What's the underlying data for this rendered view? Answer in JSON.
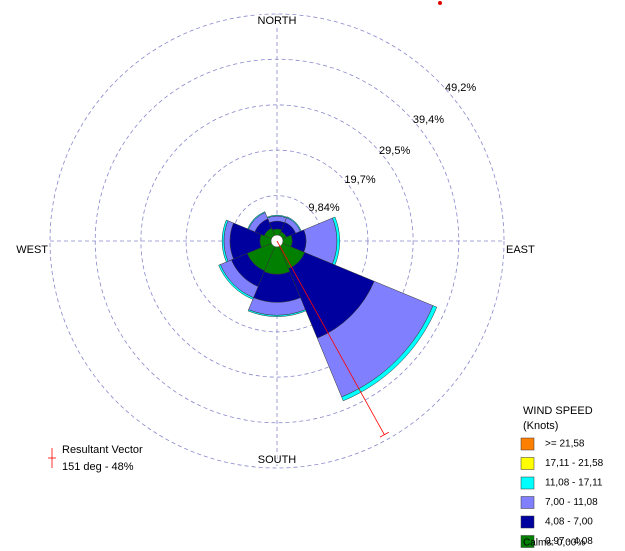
{
  "chart_data": {
    "type": "windrose",
    "categories": [
      "NORTH",
      null,
      "EAST",
      null,
      "SOUTH",
      null,
      "WEST",
      null
    ],
    "rlim": [
      0,
      49.2
    ],
    "rticks": [
      {
        "value": 9.84,
        "label": "9,84%"
      },
      {
        "value": 19.7,
        "label": "19,7%"
      },
      {
        "value": 29.5,
        "label": "29,5%"
      },
      {
        "value": 39.4,
        "label": "39,4%"
      },
      {
        "value": 49.2,
        "label": "49,2%"
      }
    ],
    "series": [
      {
        "name": "0,97 - 4,08",
        "color": "#007f00",
        "values": [
          2.6,
          2.2,
          3.3,
          6.5,
          7.2,
          7.0,
          3.7,
          3.0
        ]
      },
      {
        "name": "4,08 - 7,00",
        "color": "#00009f",
        "values": [
          1.7,
          2.2,
          3.0,
          16.3,
          6.1,
          3.7,
          6.5,
          2.2
        ]
      },
      {
        "name": "7,00 - 11,08",
        "color": "#8080ff",
        "values": [
          1.1,
          1.1,
          6.7,
          13.8,
          2.8,
          2.6,
          1.3,
          1.5
        ]
      },
      {
        "name": "11,08 - 17,11",
        "color": "#00ffff",
        "values": [
          0.2,
          0.2,
          0.6,
          0.9,
          0.3,
          0.4,
          0.4,
          0.2
        ]
      },
      {
        "name": "17,11 - 21,58",
        "color": "#ffff00",
        "values": [
          0,
          0,
          0,
          0,
          0,
          0,
          0,
          0
        ]
      },
      {
        "name": ">= 21,58",
        "color": "#ff8000",
        "values": [
          0,
          0,
          0,
          0,
          0,
          0,
          0,
          0
        ]
      }
    ],
    "legend_title": "WIND SPEED",
    "legend_subtitle": "(Knots)",
    "calms": "Calms: 0,00%",
    "resultant": {
      "title": "Resultant Vector",
      "direction": 151,
      "magnitude": 48,
      "label": "151 deg - 48%",
      "color": "#ff0000"
    }
  }
}
